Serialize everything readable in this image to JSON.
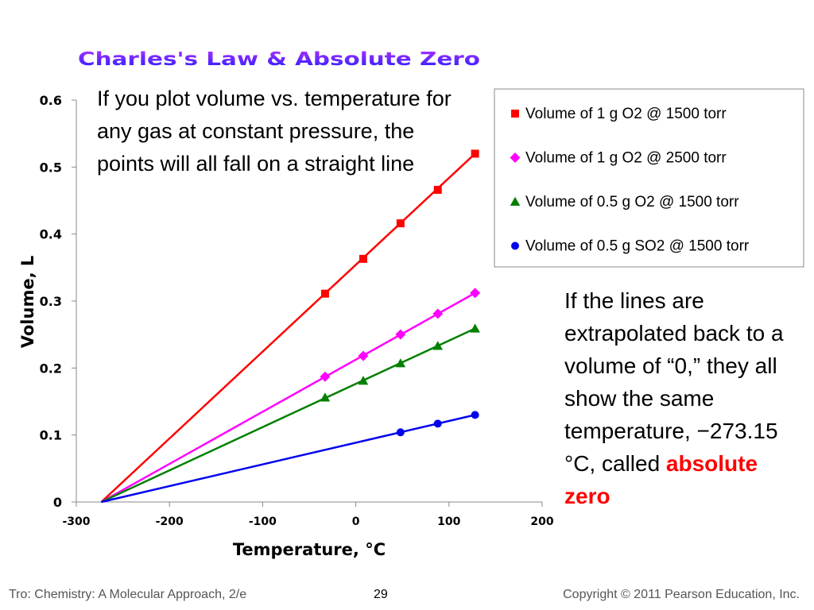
{
  "slide": {
    "callout_1": "If you plot volume vs. temperature for any gas at constant pressure, the points will all fall on a straight line",
    "callout_2_text": "If the lines are extrapolated back to a volume of “0,” they all show the same temperature, −273.15 °C, called",
    "callout_2_emphasis": "absolute zero",
    "emphasis_color": "#ff0000"
  },
  "footer": {
    "left": "Tro: Chemistry: A Molecular Approach, 2/e",
    "page_number": "29",
    "right": "Copyright © 2011 Pearson Education, Inc."
  },
  "chart_data": {
    "type": "scatter",
    "title": "Charles's Law & Absolute Zero",
    "xlabel": "Temperature, °C",
    "ylabel": "Volume, L",
    "xlim": [
      -300,
      200
    ],
    "ylim": [
      0,
      0.6
    ],
    "x_ticks": [
      -300,
      -200,
      -100,
      0,
      100,
      200
    ],
    "x_tick_labels": [
      "-300",
      "-200",
      "-100",
      "0",
      "100",
      "200"
    ],
    "y_ticks": [
      0,
      0.1,
      0.2,
      0.3,
      0.4,
      0.5,
      0.6
    ],
    "y_tick_labels": [
      "0",
      "0.1",
      "0.2",
      "0.3",
      "0.4",
      "0.5",
      "0.6"
    ],
    "grid": false,
    "legend_position": "top-right",
    "trend_lines_extrapolated_to": -273.15,
    "series": [
      {
        "name": "Volume of 1 g O2 @ 1500 torr",
        "color": "#ff0000",
        "marker": "square",
        "x": [
          -33,
          8,
          48,
          88,
          128
        ],
        "y": [
          0.311,
          0.363,
          0.416,
          0.466,
          0.52
        ]
      },
      {
        "name": "Volume of 1 g O2 @ 2500 torr",
        "color": "#ff00ff",
        "marker": "diamond",
        "x": [
          -33,
          8,
          48,
          88,
          128
        ],
        "y": [
          0.187,
          0.218,
          0.25,
          0.281,
          0.312
        ]
      },
      {
        "name": "Volume of 0.5 g O2 @ 1500 torr",
        "color": "#008000",
        "marker": "triangle",
        "x": [
          -33,
          8,
          48,
          88,
          128
        ],
        "y": [
          0.156,
          0.181,
          0.207,
          0.233,
          0.259
        ]
      },
      {
        "name": "Volume of 0.5 g SO2 @ 1500 torr",
        "color": "#0000ee",
        "marker": "circle",
        "x": [
          48,
          88,
          128
        ],
        "y": [
          0.104,
          0.117,
          0.13
        ]
      }
    ]
  }
}
